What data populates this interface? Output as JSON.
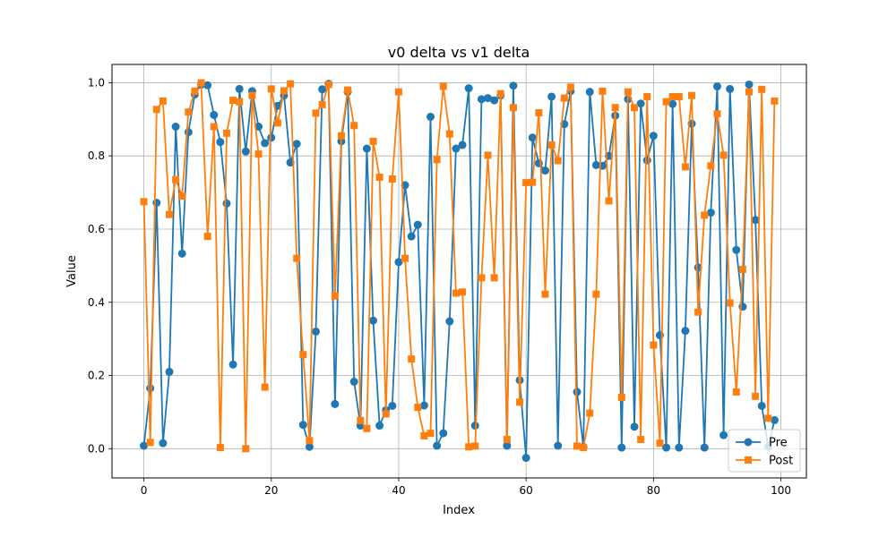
{
  "chart_data": {
    "type": "line",
    "title": "v0 delta vs v1 delta",
    "xlabel": "Index",
    "ylabel": "Value",
    "xlim": [
      -5,
      104
    ],
    "ylim": [
      -0.08,
      1.05
    ],
    "xticks": [
      0,
      20,
      40,
      60,
      80,
      100
    ],
    "yticks": [
      0.0,
      0.2,
      0.4,
      0.6,
      0.8,
      1.0
    ],
    "xtick_labels": [
      "0",
      "20",
      "40",
      "60",
      "80",
      "100"
    ],
    "ytick_labels": [
      "0.0",
      "0.2",
      "0.4",
      "0.6",
      "0.8",
      "1.0"
    ],
    "grid": true,
    "legend_position": "lower right",
    "series": [
      {
        "name": "Pre",
        "color": "#1f77b4",
        "marker": "circle",
        "values": [
          0.008,
          0.165,
          0.672,
          0.015,
          0.21,
          0.88,
          0.533,
          0.865,
          0.968,
          0.995,
          0.993,
          0.912,
          0.838,
          0.67,
          0.23,
          0.983,
          0.812,
          0.977,
          0.88,
          0.835,
          0.85,
          0.937,
          0.965,
          0.782,
          0.833,
          0.065,
          0.005,
          0.32,
          0.982,
          0.997,
          0.122,
          0.84,
          0.975,
          0.183,
          0.063,
          0.82,
          0.35,
          0.063,
          0.105,
          0.117,
          0.51,
          0.72,
          0.58,
          0.612,
          0.118,
          0.907,
          0.008,
          0.042,
          0.348,
          0.82,
          0.83,
          0.985,
          0.063,
          0.955,
          0.958,
          0.952,
          0.965,
          0.008,
          0.992,
          0.187,
          -0.025,
          0.85,
          0.78,
          0.76,
          0.962,
          0.008,
          0.887,
          0.977,
          0.155,
          0.005,
          0.975,
          0.775,
          0.773,
          0.8,
          0.91,
          0.003,
          0.955,
          0.06,
          0.943,
          0.788,
          0.855,
          0.31,
          0.003,
          0.942,
          0.003,
          0.322,
          0.888,
          0.495,
          0.003,
          0.645,
          0.99,
          0.037,
          0.983,
          0.543,
          0.388,
          0.995,
          0.625,
          0.117,
          0.005,
          0.078
        ]
      },
      {
        "name": "Post",
        "color": "#ff7f0e",
        "marker": "square",
        "values": [
          0.675,
          0.017,
          0.927,
          0.95,
          0.64,
          0.735,
          0.69,
          0.92,
          0.977,
          1.0,
          0.58,
          0.88,
          0.003,
          0.862,
          0.952,
          0.948,
          0.0,
          0.965,
          0.805,
          0.168,
          0.983,
          0.89,
          0.978,
          0.997,
          0.52,
          0.257,
          0.022,
          0.917,
          0.94,
          0.995,
          0.417,
          0.855,
          0.98,
          0.883,
          0.077,
          0.055,
          0.84,
          0.742,
          0.095,
          0.737,
          0.975,
          0.52,
          0.245,
          0.113,
          0.035,
          0.042,
          0.79,
          0.99,
          0.86,
          0.425,
          0.428,
          0.005,
          0.007,
          0.467,
          0.802,
          0.467,
          0.97,
          0.025,
          0.932,
          0.127,
          0.727,
          0.728,
          0.918,
          0.422,
          0.83,
          0.787,
          0.958,
          0.988,
          0.007,
          0.003,
          0.097,
          0.422,
          0.977,
          0.677,
          0.932,
          0.14,
          0.975,
          0.932,
          0.025,
          0.962,
          0.283,
          0.015,
          0.948,
          0.962,
          0.962,
          0.77,
          0.965,
          0.373,
          0.638,
          0.773,
          0.915,
          0.802,
          0.398,
          0.155,
          0.49,
          0.975,
          0.143,
          0.982,
          0.083,
          0.95
        ]
      }
    ]
  }
}
